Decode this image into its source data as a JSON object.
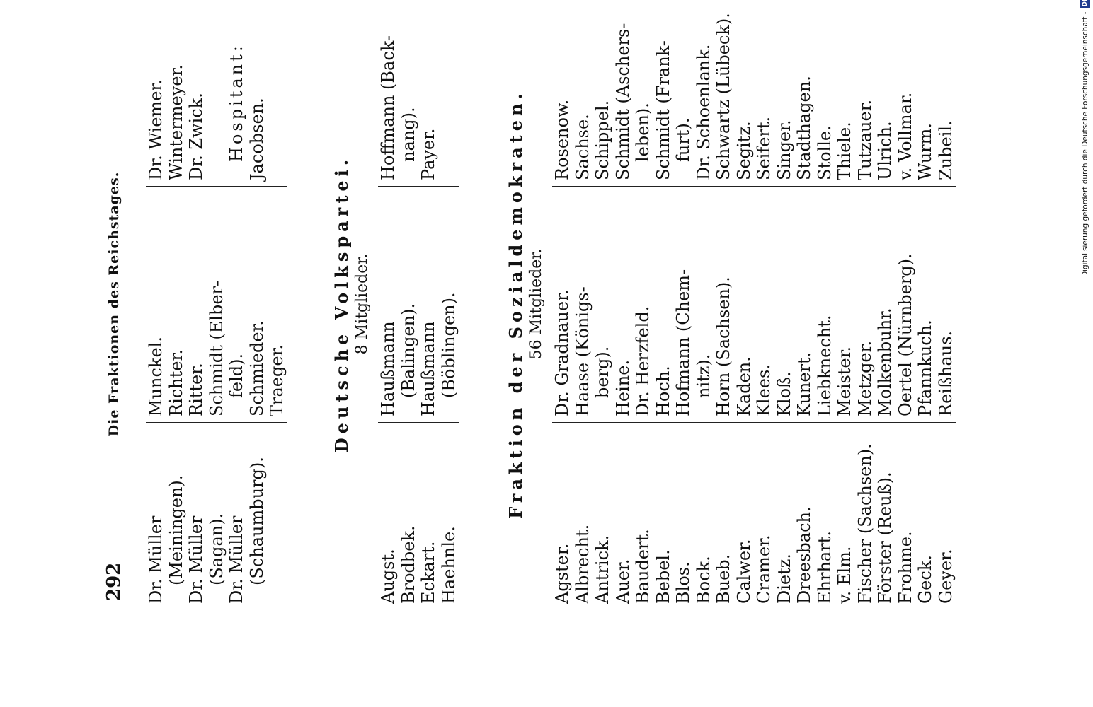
{
  "header": {
    "page_number": "292",
    "running_title": "Die Fraktionen des Reichstages."
  },
  "section_top": {
    "columns": [
      [
        {
          "text": "Dr. Müller",
          "indent": false
        },
        {
          "text": "(Meiningen).",
          "indent": true
        },
        {
          "text": "Dr. Müller",
          "indent": false
        },
        {
          "text": "(Sagan).",
          "indent": true
        },
        {
          "text": "Dr. Müller",
          "indent": false
        },
        {
          "text": "(Schaumburg).",
          "indent": true
        }
      ],
      [
        {
          "text": "Munckel.",
          "indent": false
        },
        {
          "text": "Richter.",
          "indent": false
        },
        {
          "text": "Ritter.",
          "indent": false
        },
        {
          "text": "Schmidt (Elber-",
          "indent": false
        },
        {
          "text": "feld).",
          "indent": true
        },
        {
          "text": "Schmieder.",
          "indent": false
        },
        {
          "text": "Traeger.",
          "indent": false
        }
      ],
      [
        {
          "text": "Dr. Wiemer.",
          "indent": false
        },
        {
          "text": "Wintermeyer.",
          "indent": false
        },
        {
          "text": "Dr. Zwick.",
          "indent": false
        },
        {
          "text": "",
          "indent": false
        },
        {
          "text": "Hospitant:",
          "indent": true,
          "spaced": true
        },
        {
          "text": "Jacobsen.",
          "indent": false
        }
      ]
    ]
  },
  "section_volkspartei": {
    "title": "Deutsche Volkspartei.",
    "subtitle": "8 Mitglieder.",
    "columns": [
      [
        {
          "text": "Augst.",
          "indent": false
        },
        {
          "text": "Brodbek.",
          "indent": false
        },
        {
          "text": "Eckart.",
          "indent": false
        },
        {
          "text": "Haehnle.",
          "indent": false
        }
      ],
      [
        {
          "text": "Haußmann",
          "indent": false
        },
        {
          "text": "(Balingen).",
          "indent": true
        },
        {
          "text": "Haußmann",
          "indent": false
        },
        {
          "text": "(Böblingen).",
          "indent": true
        }
      ],
      [
        {
          "text": "Hoffmann (Back-",
          "indent": false
        },
        {
          "text": "nang).",
          "indent": true
        },
        {
          "text": "Payer.",
          "indent": false
        }
      ]
    ]
  },
  "section_sozialdemokraten": {
    "title": "Fraktion der Sozialdemokraten.",
    "subtitle": "56 Mitglieder.",
    "columns": [
      [
        {
          "text": "Agster.",
          "indent": false
        },
        {
          "text": "Albrecht.",
          "indent": false
        },
        {
          "text": "Antrick.",
          "indent": false
        },
        {
          "text": "Auer.",
          "indent": false
        },
        {
          "text": "Baudert.",
          "indent": false
        },
        {
          "text": "Bebel.",
          "indent": false
        },
        {
          "text": "Blos.",
          "indent": false
        },
        {
          "text": "Bock.",
          "indent": false
        },
        {
          "text": "Bueb.",
          "indent": false
        },
        {
          "text": "Calwer.",
          "indent": false
        },
        {
          "text": "Cramer.",
          "indent": false
        },
        {
          "text": "Dietz.",
          "indent": false
        },
        {
          "text": "Dreesbach.",
          "indent": false
        },
        {
          "text": "Ehrhart.",
          "indent": false
        },
        {
          "text": "v. Elm.",
          "indent": false
        },
        {
          "text": "Fischer (Sachsen).",
          "indent": false
        },
        {
          "text": "Förster (Reuß).",
          "indent": false
        },
        {
          "text": "Frohme.",
          "indent": false
        },
        {
          "text": "Geck.",
          "indent": false
        },
        {
          "text": "Geyer.",
          "indent": false
        }
      ],
      [
        {
          "text": "Dr. Gradnauer.",
          "indent": false
        },
        {
          "text": "Haase (Königs-",
          "indent": false
        },
        {
          "text": "berg).",
          "indent": true
        },
        {
          "text": "Heine.",
          "indent": false
        },
        {
          "text": "Dr. Herzfeld.",
          "indent": false
        },
        {
          "text": "Hoch.",
          "indent": false
        },
        {
          "text": "Hofmann (Chem-",
          "indent": false
        },
        {
          "text": "nitz).",
          "indent": true
        },
        {
          "text": "Horn (Sachsen).",
          "indent": false
        },
        {
          "text": "Kaden.",
          "indent": false
        },
        {
          "text": "Klees.",
          "indent": false
        },
        {
          "text": "Kloß.",
          "indent": false
        },
        {
          "text": "Kunert.",
          "indent": false
        },
        {
          "text": "Liebknecht.",
          "indent": false
        },
        {
          "text": "Meister.",
          "indent": false
        },
        {
          "text": "Metzger.",
          "indent": false
        },
        {
          "text": "Molkenbuhr.",
          "indent": false
        },
        {
          "text": "Oertel (Nürnberg).",
          "indent": false
        },
        {
          "text": "Pfannkuch.",
          "indent": false
        },
        {
          "text": "Reißhaus.",
          "indent": false
        }
      ],
      [
        {
          "text": "Rosenow.",
          "indent": false
        },
        {
          "text": "Sachse.",
          "indent": false
        },
        {
          "text": "Schippel.",
          "indent": false
        },
        {
          "text": "Schmidt (Aschers-",
          "indent": false
        },
        {
          "text": "leben).",
          "indent": true
        },
        {
          "text": "Schmidt (Frank-",
          "indent": false
        },
        {
          "text": "furt).",
          "indent": true
        },
        {
          "text": "Dr. Schoenlank.",
          "indent": false
        },
        {
          "text": "Schwartz (Lübeck).",
          "indent": false
        },
        {
          "text": "Segitz.",
          "indent": false
        },
        {
          "text": "Seifert.",
          "indent": false
        },
        {
          "text": "Singer.",
          "indent": false
        },
        {
          "text": "Stadthagen.",
          "indent": false
        },
        {
          "text": "Stolle.",
          "indent": false
        },
        {
          "text": "Thiele.",
          "indent": false
        },
        {
          "text": "Tutzauer.",
          "indent": false
        },
        {
          "text": "Ulrich.",
          "indent": false
        },
        {
          "text": "v. Vollmar.",
          "indent": false
        },
        {
          "text": "Wurm.",
          "indent": false
        },
        {
          "text": "Zubeil.",
          "indent": false
        }
      ]
    ]
  },
  "side_credit": {
    "text": "Digitalisierung gefördert durch die Deutsche Forschungsgemeinschaft -",
    "logo": "DFG"
  }
}
